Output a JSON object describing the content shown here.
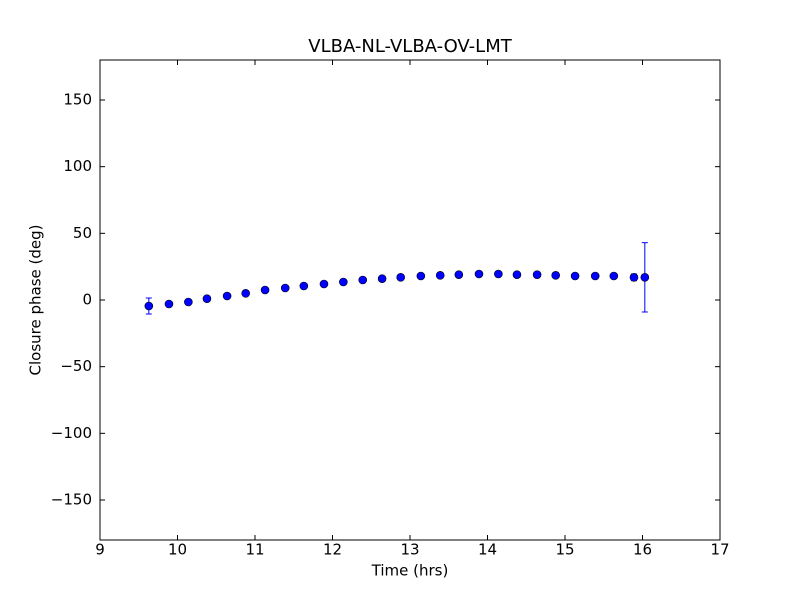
{
  "chart_data": {
    "type": "errorbar",
    "title": "VLBA-NL-VLBA-OV-LMT",
    "x_label": "Time (hrs)",
    "y_label": "Closure phase (deg)",
    "series": [
      {
        "color": "#0000ff",
        "x": [
          9.63,
          9.89,
          10.14,
          10.38,
          10.64,
          10.88,
          11.13,
          11.39,
          11.63,
          11.89,
          12.14,
          12.39,
          12.64,
          12.88,
          13.14,
          13.39,
          13.63,
          13.89,
          14.14,
          14.38,
          14.64,
          14.88,
          15.13,
          15.39,
          15.63,
          15.89,
          16.03
        ],
        "values": [
          -4.5,
          -3,
          -1.5,
          1,
          3,
          5,
          7.5,
          9,
          10.5,
          12,
          13.5,
          15,
          16,
          17,
          18,
          18.5,
          19,
          19.5,
          19.5,
          19,
          19,
          18.5,
          18,
          18,
          18,
          17,
          17
        ],
        "errors": [
          6,
          1,
          1,
          1,
          1,
          1,
          1,
          1,
          1,
          1,
          1,
          1,
          1,
          1,
          1,
          1,
          1,
          1,
          1,
          1,
          1,
          1,
          1,
          1,
          1,
          2.5,
          26
        ]
      }
    ],
    "xlim": [
      9,
      17
    ],
    "xticks": [
      9,
      10,
      11,
      12,
      13,
      14,
      15,
      16,
      17
    ],
    "ylim": [
      -180,
      180
    ],
    "yticks": [
      {
        "value": -150,
        "label": "−150"
      },
      {
        "value": -100,
        "label": "−100"
      },
      {
        "value": -50,
        "label": "−50"
      },
      0,
      50,
      100,
      150
    ],
    "grid": false
  }
}
